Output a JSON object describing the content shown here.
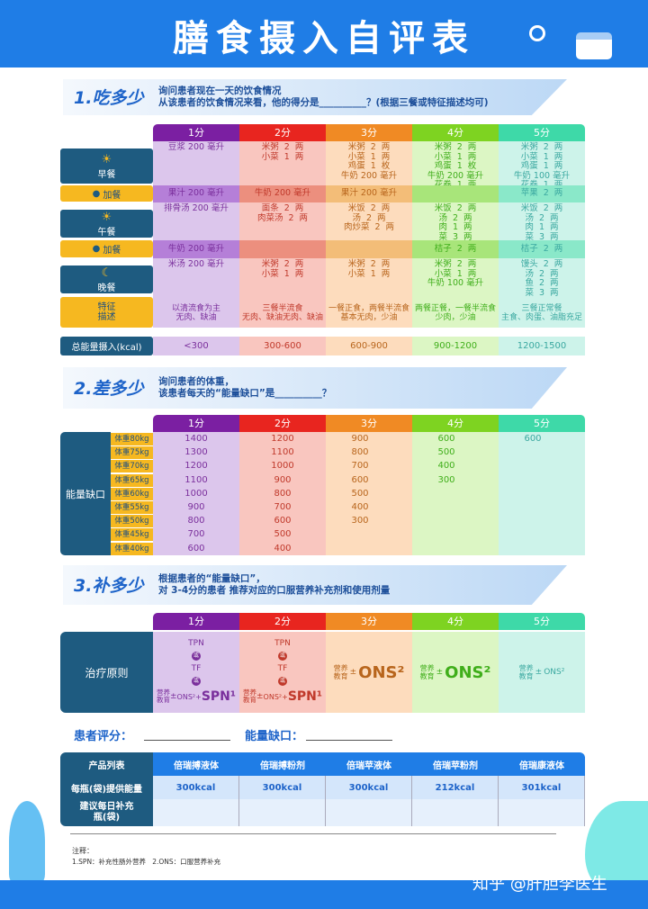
{
  "title": "膳食摄入自评表",
  "columns": [
    "1分",
    "2分",
    "3分",
    "4分",
    "5分"
  ],
  "colors": {
    "header": [
      "#7b1fa2",
      "#e8251f",
      "#f08a24",
      "#7ed321",
      "#3ed9a8"
    ],
    "body": [
      "#dcc6ec",
      "#f9c6bf",
      "#fddcbd",
      "#dcf6c4",
      "#cdf3ea"
    ],
    "extra": [
      "#b57fd8",
      "#ec8f7e",
      "#f3bd78",
      "#a8e57a",
      "#8ae8c9"
    ],
    "text": [
      "#7a2f9c",
      "#c0392b",
      "#b8651c",
      "#3fae1a",
      "#3aa8a0"
    ],
    "brand": "#1f7de6",
    "navy": "#1e5b80"
  },
  "s1": {
    "num": "1.吃多少",
    "q1": "询问患者现在一天的饮食情况",
    "q2": "从该患者的饮食情况来看，他的得分是__________？(根据三餐或特征描述均可)",
    "rows": [
      {
        "label": "早餐",
        "icon": "sunrise-icon",
        "cells": [
          "豆浆 200 毫升",
          "米粥  2  两\n小菜  1  两",
          "米粥  2  两\n小菜  1  两\n鸡蛋  1  枚\n牛奶 200 毫升",
          "米粥  2  两\n小菜  1  两\n鸡蛋  1  枚\n牛奶 200 毫升\n花卷  1  两",
          "米粥  2  两\n小菜  1  两\n鸡蛋  1  两\n牛奶 100 毫升\n花卷  1  两"
        ]
      },
      {
        "label": "加餐",
        "extra": true,
        "cells": [
          "果汁 200 毫升",
          "牛奶 200 毫升",
          "果汁 200 毫升",
          "",
          "苹果  2  两"
        ]
      },
      {
        "label": "午餐",
        "icon": "sun-icon",
        "cells": [
          "排骨汤 200 毫升",
          "面条  2  两\n肉菜汤  2  两",
          "米饭  2  两\n汤  2  两\n肉炒菜  2  两",
          "米饭  2  两\n汤  2  两\n肉  1  两\n菜  3  两",
          "米饭  2  两\n汤  2  两\n肉  1  两\n菜  3  两"
        ]
      },
      {
        "label": "加餐",
        "extra": true,
        "cells": [
          "牛奶 200 毫升",
          "",
          "",
          "桔子  2  两",
          "桔子  2  两"
        ]
      },
      {
        "label": "晚餐",
        "icon": "moon-icon",
        "cells": [
          "米汤 200 毫升",
          "米粥  2  两\n小菜  1  两",
          "米粥  2  两\n小菜  1  两",
          "米粥  2  两\n小菜  1  两\n牛奶 100 毫升",
          "馒头  2  两\n汤  2  两\n鱼  2  两\n菜  3  两"
        ]
      },
      {
        "label": "特征\n描述",
        "feature": true,
        "cells": [
          "以清流食为主\n无肉、缺油",
          "三餐半流食\n无肉、缺油无肉、缺油",
          "一餐正食，两餐半流食\n基本无肉，少油",
          "两餐正餐，一餐半流食\n少肉，少油",
          "三餐正常餐\n主食、肉蛋、油脂充足"
        ]
      }
    ],
    "total_label": "总能量摄入(kcal)",
    "totals": [
      "<300",
      "300-600",
      "600-900",
      "900-1200",
      "1200-1500"
    ]
  },
  "s2": {
    "num": "2.差多少",
    "q1": "询问患者的体重，",
    "q2": "该患者每天的“能量缺口”是__________？",
    "label": "能量缺口",
    "weights": [
      "体重80kg",
      "体重75kg",
      "体重70kg",
      "体重65kg",
      "体重60kg",
      "体重55kg",
      "体重50kg",
      "体重45kg",
      "体重40kg"
    ],
    "values": [
      [
        "1400",
        "1200",
        "900",
        "600",
        "600"
      ],
      [
        "1300",
        "1100",
        "800",
        "500",
        ""
      ],
      [
        "1200",
        "1000",
        "700",
        "400",
        ""
      ],
      [
        "1100",
        "900",
        "600",
        "300",
        ""
      ],
      [
        "1000",
        "800",
        "500",
        "",
        ""
      ],
      [
        "900",
        "700",
        "400",
        "",
        ""
      ],
      [
        "800",
        "600",
        "300",
        "",
        ""
      ],
      [
        "700",
        "500",
        "",
        "",
        ""
      ],
      [
        "600",
        "400",
        "",
        "",
        ""
      ]
    ]
  },
  "s3": {
    "num": "3.补多少",
    "q1": "根据患者的“能量缺口”，",
    "q2": "对 3-4分的患者 推荐对应的口服营养补充剂和使用剂量",
    "label": "治疗原则",
    "tpn": "TPN",
    "tf": "TF",
    "or": "或",
    "edu": "营养\n教育",
    "pm": "±",
    "ons_plus": "ONS²+",
    "spn": "SPN¹",
    "ons": "ONS²",
    "ons_small": "ONS²"
  },
  "score_label": "患者评分：",
  "gap_label": "能量缺口：",
  "products": {
    "header": "产品列表",
    "names": [
      "倍瑞搏液体",
      "倍瑞搏粉剂",
      "倍瑞苹液体",
      "倍瑞苹粉剂",
      "倍瑞康液体"
    ],
    "energy_label": "每瓶(袋)提供能量",
    "energy": [
      "300kcal",
      "300kcal",
      "300kcal",
      "212kcal",
      "301kcal"
    ],
    "daily_label": "建议每日补充\n瓶(袋)"
  },
  "notes": {
    "title": "注释：",
    "text": "1.SPN：补充性肠外营养   2.ONS：口服营养补充"
  },
  "watermark": "知乎 @肝胆李医生"
}
